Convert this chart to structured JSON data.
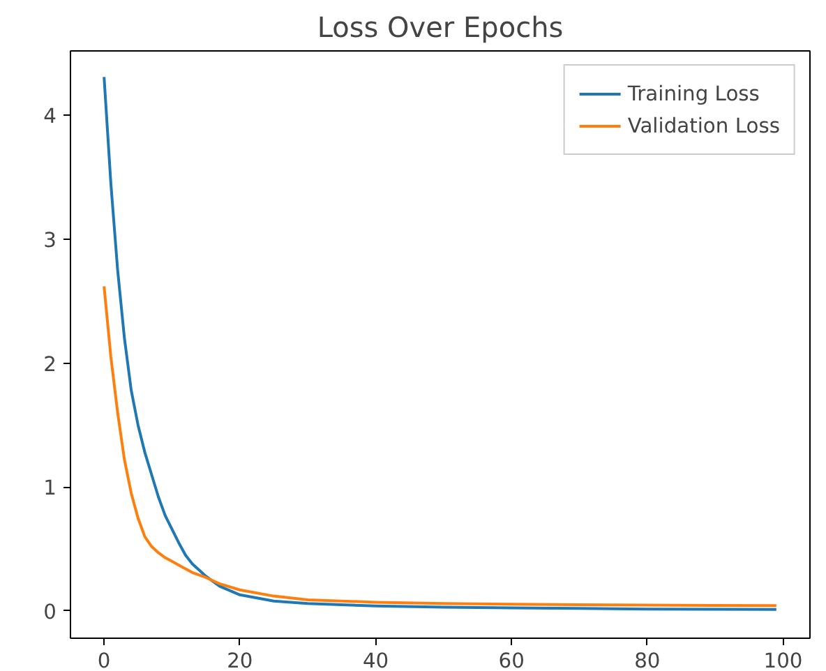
{
  "chart_data": {
    "type": "line",
    "title": "Loss Over Epochs",
    "x": [
      0,
      1,
      2,
      3,
      4,
      5,
      6,
      7,
      8,
      9,
      10,
      11,
      12,
      13,
      14,
      15,
      17,
      20,
      25,
      30,
      40,
      50,
      60,
      70,
      80,
      90,
      99
    ],
    "series": [
      {
        "name": "Training Loss",
        "color": "#1f77b4",
        "values": [
          4.31,
          3.45,
          2.75,
          2.2,
          1.78,
          1.5,
          1.28,
          1.1,
          0.92,
          0.77,
          0.66,
          0.55,
          0.45,
          0.38,
          0.33,
          0.28,
          0.2,
          0.13,
          0.08,
          0.06,
          0.04,
          0.03,
          0.025,
          0.02,
          0.015,
          0.013,
          0.012
        ]
      },
      {
        "name": "Validation Loss",
        "color": "#ff7f0e",
        "values": [
          2.62,
          2.05,
          1.6,
          1.22,
          0.95,
          0.75,
          0.6,
          0.52,
          0.47,
          0.43,
          0.4,
          0.37,
          0.34,
          0.31,
          0.29,
          0.27,
          0.22,
          0.17,
          0.12,
          0.09,
          0.07,
          0.06,
          0.055,
          0.05,
          0.047,
          0.045,
          0.043
        ]
      }
    ],
    "xlim": [
      -4.95,
      103.95
    ],
    "ylim": [
      -0.22,
      4.52
    ],
    "xticks": [
      0,
      20,
      40,
      60,
      80,
      100
    ],
    "yticks": [
      0,
      1,
      2,
      3,
      4
    ],
    "grid": false,
    "legend": "top right",
    "line_style": "solid",
    "marker": "none"
  }
}
